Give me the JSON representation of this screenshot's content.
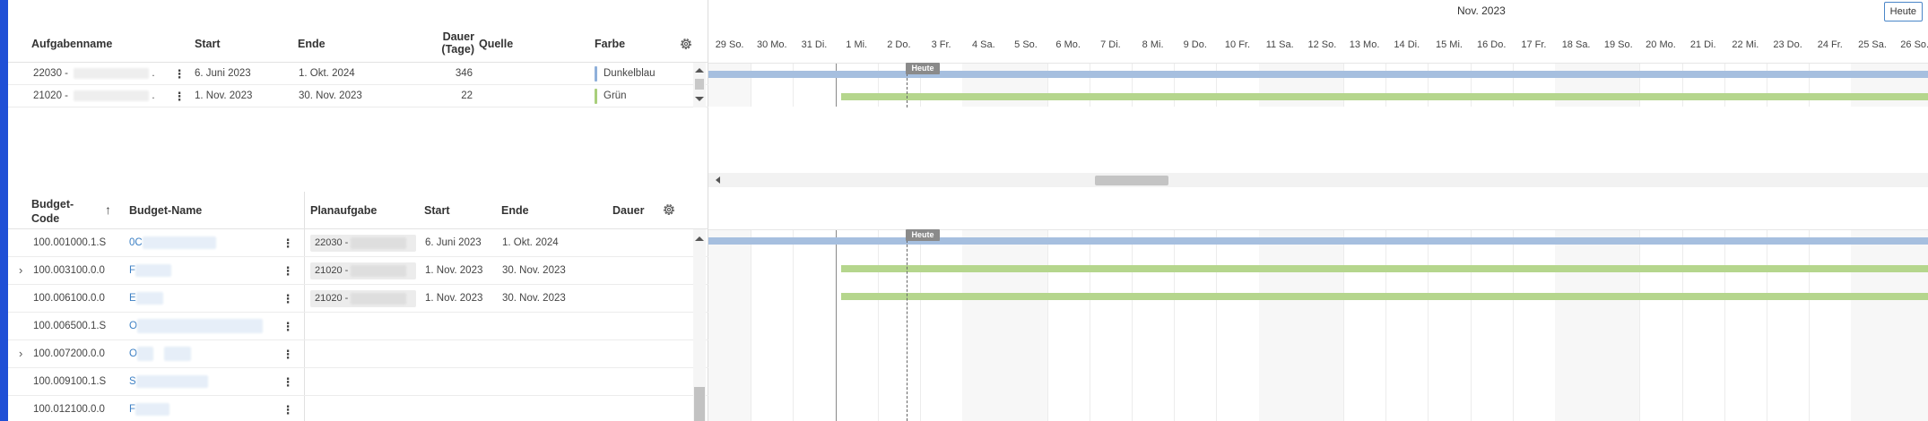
{
  "colors": {
    "blue_bar": "#a6bfdf",
    "green_bar": "#b5d68d",
    "dunkelblau": "#8fb0da",
    "gruen": "#a9cf7b",
    "link": "#3b7fc4",
    "accent_edge": "#1f4fd6"
  },
  "top_table": {
    "headers": {
      "name": "Aufgabenname",
      "start": "Start",
      "end": "Ende",
      "duration_line1": "Dauer",
      "duration_line2": "(Tage)",
      "source": "Quelle",
      "color": "Farbe"
    },
    "settings_icon": "gear-icon",
    "rows": [
      {
        "name_prefix": "22030 -",
        "name_suffix": ".",
        "start": "6. Juni 2023",
        "end": "1. Okt. 2024",
        "duration": "346",
        "source": "",
        "color_label": "Dunkelblau"
      },
      {
        "name_prefix": "21020 -",
        "name_suffix": ".",
        "start": "1. Nov. 2023",
        "end": "30. Nov. 2023",
        "duration": "22",
        "source": "",
        "color_label": "Grün"
      }
    ]
  },
  "timeline": {
    "month": "Nov. 2023",
    "today_button": "Heute",
    "today_tag": "Heute",
    "days": [
      "29 So.",
      "30 Mo.",
      "31 Di.",
      "1 Mi.",
      "2 Do.",
      "3 Fr.",
      "4 Sa.",
      "5 So.",
      "6 Mo.",
      "7 Di.",
      "8 Mi.",
      "9 Do.",
      "10 Fr.",
      "11 Sa.",
      "12 So.",
      "13 Mo.",
      "14 Di.",
      "15 Mi.",
      "16 Do.",
      "17 Fr.",
      "18 Sa.",
      "19 So.",
      "20 Mo.",
      "21 Di.",
      "22 Mi.",
      "23 Do.",
      "24 Fr.",
      "25 Sa.",
      "26 So."
    ]
  },
  "bottom_table": {
    "headers": {
      "budget_code_line1": "Budget-",
      "budget_code_line2": "Code",
      "budget_name": "Budget-Name",
      "plan_task": "Planaufgabe",
      "start": "Start",
      "end": "Ende",
      "duration": "Dauer"
    },
    "sort_icon": "sort-ascending-icon",
    "settings_icon": "gear-icon",
    "rows": [
      {
        "expandable": false,
        "code": "100.001000.1.S",
        "name_prefix": "0C",
        "plan_task": "22030 -",
        "start": "6. Juni 2023",
        "end": "1. Okt. 2024"
      },
      {
        "expandable": true,
        "code": "100.003100.0.0",
        "name_prefix": "F",
        "plan_task": "21020 -",
        "start": "1. Nov. 2023",
        "end": "30. Nov. 2023"
      },
      {
        "expandable": false,
        "code": "100.006100.0.0",
        "name_prefix": "E",
        "plan_task": "21020 -",
        "start": "1. Nov. 2023",
        "end": "30. Nov. 2023"
      },
      {
        "expandable": false,
        "code": "100.006500.1.S",
        "name_prefix": "O",
        "plan_task": "",
        "start": "",
        "end": ""
      },
      {
        "expandable": true,
        "code": "100.007200.0.0",
        "name_prefix": "O",
        "plan_task": "",
        "start": "",
        "end": ""
      },
      {
        "expandable": false,
        "code": "100.009100.1.S",
        "name_prefix": "S",
        "plan_task": "",
        "start": "",
        "end": ""
      },
      {
        "expandable": false,
        "code": "100.012100.0.0",
        "name_prefix": "F",
        "plan_task": "",
        "start": "",
        "end": ""
      }
    ]
  }
}
